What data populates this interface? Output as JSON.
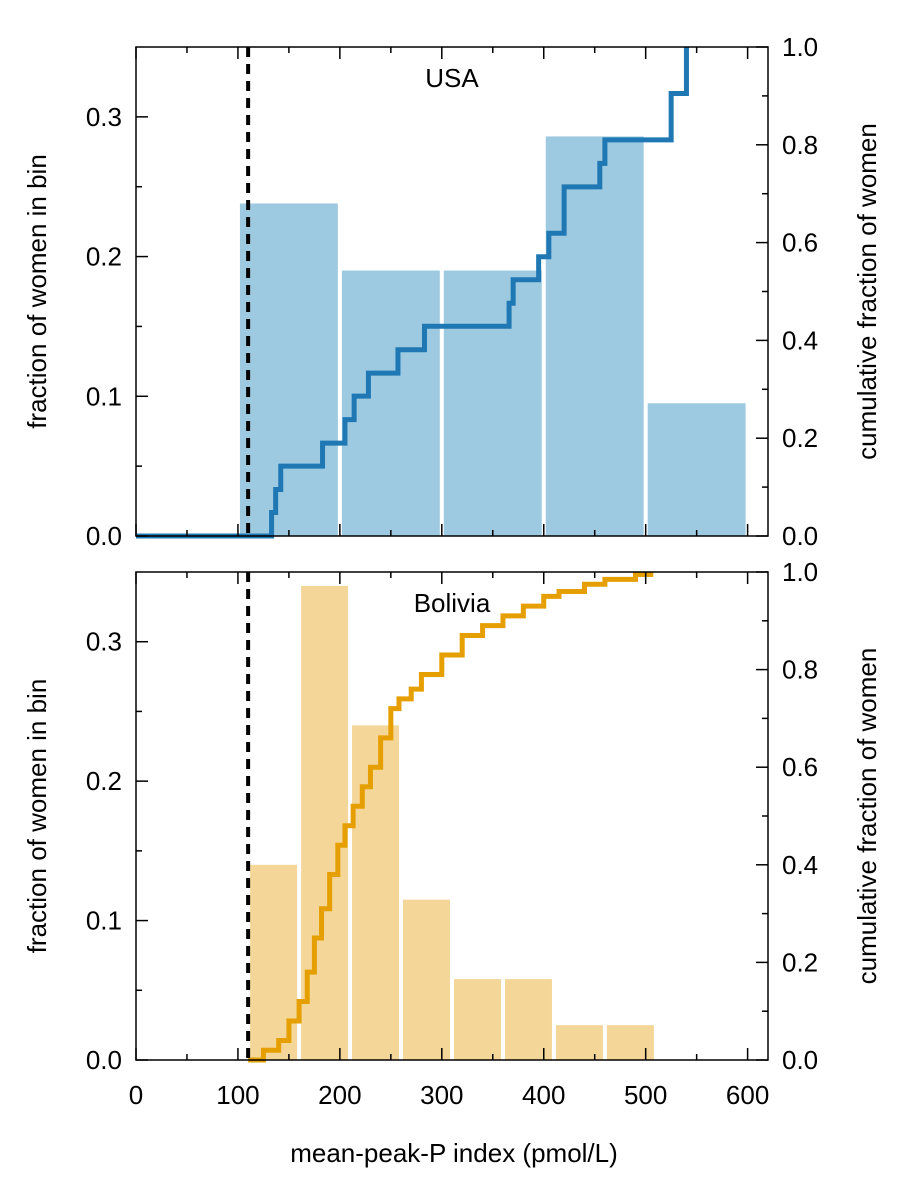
{
  "colors": {
    "usa_bar": "#9ecae1",
    "usa_line": "#1f78b4",
    "bolivia_bar": "#f5d699",
    "bolivia_line": "#e69f00",
    "threshold": "#000000"
  },
  "chart_data": {
    "type": "bar",
    "xlabel": "mean-peak-P index (pmol/L)",
    "xlim": [
      0,
      620
    ],
    "x_ticks": [
      "0",
      "100",
      "200",
      "300",
      "400",
      "500",
      "600"
    ],
    "threshold_x": 110,
    "panels": [
      {
        "title": "USA",
        "ylabel_left": "fraction of women in bin",
        "ylabel_right": "cumulative fraction of women",
        "ylim_left": [
          0,
          0.35
        ],
        "ylim_right": [
          0,
          1.0
        ],
        "left_ticks": [
          "0.0",
          "0.1",
          "0.2",
          "0.3"
        ],
        "right_ticks": [
          "0.0",
          "0.2",
          "0.4",
          "0.6",
          "0.8",
          "1.0"
        ],
        "bars": {
          "bin_width": 100,
          "bin_left": [
            100,
            200,
            300,
            400,
            500
          ],
          "values": [
            0.238,
            0.19,
            0.19,
            0.286,
            0.095
          ]
        },
        "cumulative": {
          "x": [
            0,
            133,
            137,
            142,
            183,
            205,
            214,
            228,
            257,
            283,
            366,
            370,
            395,
            405,
            420,
            455,
            460,
            525,
            540
          ],
          "y": [
            0,
            0.048,
            0.095,
            0.143,
            0.19,
            0.238,
            0.286,
            0.333,
            0.381,
            0.429,
            0.476,
            0.524,
            0.571,
            0.619,
            0.714,
            0.762,
            0.81,
            0.905,
            1.0
          ]
        }
      },
      {
        "title": "Bolivia",
        "ylabel_left": "fraction of women in bin",
        "ylabel_right": "cumulative fraction of women",
        "ylim_left": [
          0,
          0.35
        ],
        "ylim_right": [
          0,
          1.0
        ],
        "left_ticks": [
          "0.0",
          "0.1",
          "0.2",
          "0.3"
        ],
        "right_ticks": [
          "0.0",
          "0.2",
          "0.4",
          "0.6",
          "0.8",
          "1.0"
        ],
        "bars": {
          "bin_width": 50,
          "bin_left": [
            110,
            160,
            210,
            260,
            310,
            360,
            410,
            460
          ],
          "values": [
            0.14,
            0.34,
            0.24,
            0.115,
            0.058,
            0.058,
            0.025,
            0.025
          ]
        },
        "cumulative": {
          "x": [
            110,
            125,
            140,
            150,
            160,
            168,
            175,
            182,
            190,
            198,
            205,
            213,
            222,
            230,
            240,
            250,
            258,
            270,
            280,
            300,
            320,
            340,
            360,
            380,
            400,
            415,
            440,
            460,
            490,
            505
          ],
          "y": [
            0,
            0.02,
            0.04,
            0.08,
            0.12,
            0.18,
            0.25,
            0.31,
            0.38,
            0.44,
            0.48,
            0.52,
            0.56,
            0.6,
            0.66,
            0.72,
            0.74,
            0.76,
            0.79,
            0.83,
            0.87,
            0.89,
            0.91,
            0.93,
            0.95,
            0.96,
            0.975,
            0.985,
            0.995,
            1.0
          ]
        }
      }
    ]
  }
}
